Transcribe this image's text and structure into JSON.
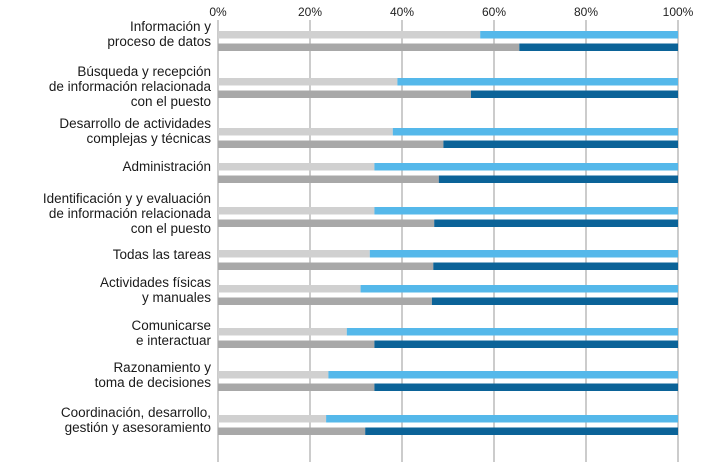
{
  "chart_data": {
    "type": "bar",
    "orientation": "horizontal",
    "stacked": true,
    "percent_stacked": true,
    "title": "",
    "xlabel": "",
    "ylabel": "",
    "xlim": [
      0,
      100
    ],
    "ticks": [
      "0%",
      "20%",
      "40%",
      "60%",
      "80%",
      "100%"
    ],
    "tick_values": [
      0,
      20,
      40,
      60,
      80,
      100
    ],
    "grid": true,
    "legend": "none",
    "colors": {
      "top_low": "#d0d0d0",
      "top_high": "#55b8ea",
      "bottom_low": "#a8a8a8",
      "bottom_high": "#0b6398"
    },
    "categories": [
      {
        "label_lines": [
          "Información y",
          "proceso de datos"
        ],
        "top": 57,
        "bottom": 65.5
      },
      {
        "label_lines": [
          "Búsqueda y recepción",
          "de información relacionada",
          "con el puesto"
        ],
        "top": 39,
        "bottom": 55
      },
      {
        "label_lines": [
          "Desarrollo de actividades",
          "complejas y técnicas"
        ],
        "top": 38,
        "bottom": 49
      },
      {
        "label_lines": [
          "Administración"
        ],
        "top": 34,
        "bottom": 48
      },
      {
        "label_lines": [
          "Identificación y y evaluación",
          "de información relacionada",
          "con el puesto"
        ],
        "top": 34,
        "bottom": 47
      },
      {
        "label_lines": [
          "Todas las tareas"
        ],
        "top": 33,
        "bottom": 46.8
      },
      {
        "label_lines": [
          "Actividades físicas",
          "y manuales"
        ],
        "top": 31,
        "bottom": 46.5
      },
      {
        "label_lines": [
          "Comunicarse",
          "e interactuar"
        ],
        "top": 28,
        "bottom": 34
      },
      {
        "label_lines": [
          "Razonamiento y",
          "toma de decisiones"
        ],
        "top": 24,
        "bottom": 34
      },
      {
        "label_lines": [
          "Coordinación, desarrollo,",
          "gestión y asesoramiento"
        ],
        "top": 23.5,
        "bottom": 32
      }
    ]
  }
}
